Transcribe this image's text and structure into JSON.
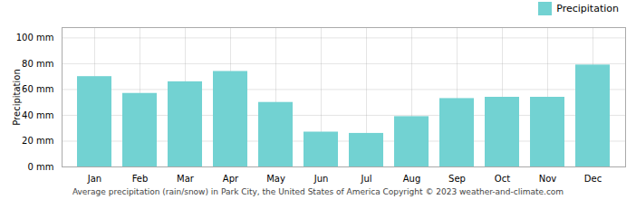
{
  "chart_data": {
    "type": "bar",
    "categories": [
      "Jan",
      "Feb",
      "Mar",
      "Apr",
      "May",
      "Jun",
      "Jul",
      "Aug",
      "Sep",
      "Oct",
      "Nov",
      "Dec"
    ],
    "series": [
      {
        "name": "Precipitation",
        "color": "#72D2D2",
        "values": [
          70,
          57,
          66,
          74,
          50,
          27,
          26,
          39,
          53,
          54,
          54,
          79
        ]
      }
    ],
    "ylabel": "Precipitation",
    "ylim": [
      0,
      108
    ],
    "yticks": [
      {
        "value": 0,
        "label": "0 mm"
      },
      {
        "value": 20,
        "label": "20 mm"
      },
      {
        "value": 40,
        "label": "40 mm"
      },
      {
        "value": 60,
        "label": "60 mm"
      },
      {
        "value": 80,
        "label": "80 mm"
      },
      {
        "value": 100,
        "label": "100 mm"
      }
    ],
    "grid": true,
    "legend": "upper right",
    "caption": "Average precipitation (rain/snow) in Park City, the United States of America   Copyright © 2023  weather-and-climate.com"
  }
}
